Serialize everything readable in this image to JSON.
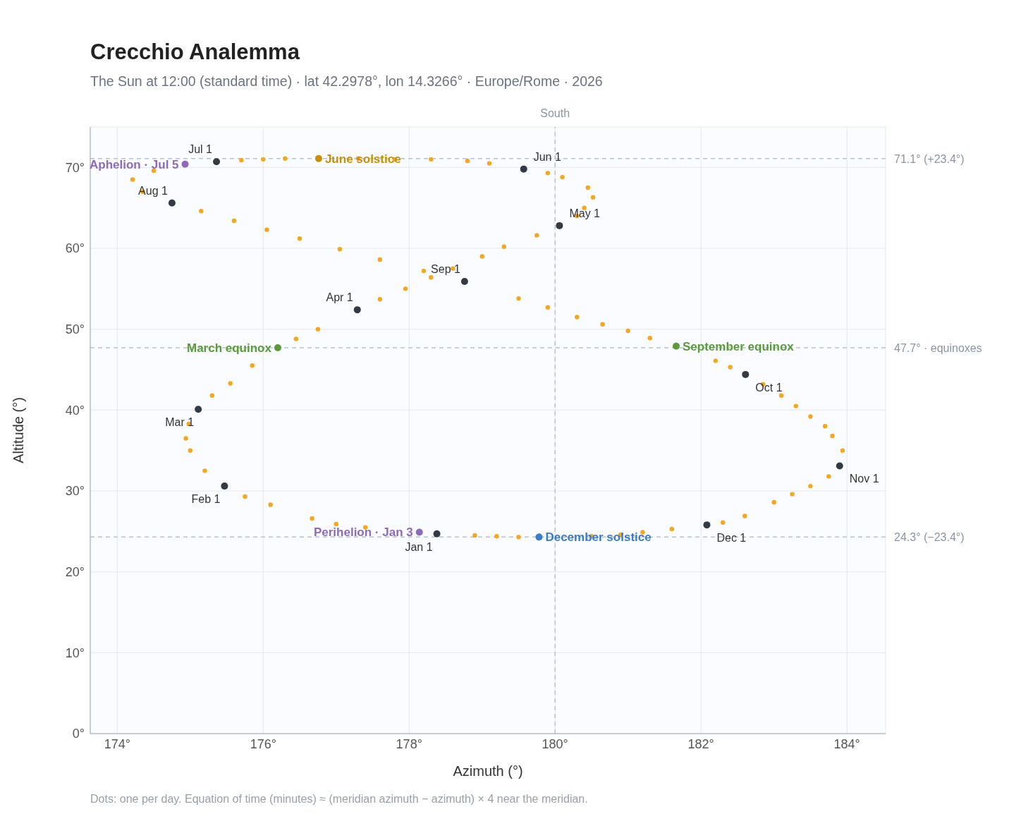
{
  "chart_data": {
    "type": "scatter",
    "title": "Crecchio Analemma",
    "subtitle": "The Sun at 12:00 (standard time) · lat 42.2978°, lon 14.3266° · Europe/Rome · 2026",
    "xlabel": "Azimuth (°)",
    "ylabel": "Altitude (°)",
    "marker": "circle",
    "grid": true,
    "xlim": [
      173.63,
      184.53
    ],
    "ylim": [
      0,
      75
    ],
    "xticks": [
      {
        "value": 174,
        "label": "174°"
      },
      {
        "value": 176,
        "label": "176°"
      },
      {
        "value": 178,
        "label": "178°"
      },
      {
        "value": 180,
        "label": "180°"
      },
      {
        "value": 182,
        "label": "182°"
      },
      {
        "value": 184,
        "label": "184°"
      }
    ],
    "yticks": [
      {
        "value": 0,
        "label": "0°"
      },
      {
        "value": 10,
        "label": "10°"
      },
      {
        "value": 20,
        "label": "20°"
      },
      {
        "value": 30,
        "label": "30°"
      },
      {
        "value": 40,
        "label": "40°"
      },
      {
        "value": 50,
        "label": "50°"
      },
      {
        "value": 60,
        "label": "60°"
      },
      {
        "value": 70,
        "label": "70°"
      }
    ],
    "ref_lines": [
      {
        "axis": "x",
        "value": 180,
        "label": "South",
        "color": "#b8c2cc",
        "line_style": "dashed"
      },
      {
        "axis": "y",
        "value": 71.1,
        "label": "71.1° (+23.4°)",
        "color": "#b8c2cc",
        "line_style": "dashed"
      },
      {
        "axis": "y",
        "value": 47.7,
        "label": "47.7° · equinoxes",
        "color": "#b8c2cc",
        "line_style": "dashed"
      },
      {
        "axis": "y",
        "value": 24.3,
        "label": "24.3° (−23.4°)",
        "color": "#b8c2cc",
        "line_style": "dashed"
      }
    ],
    "series": [
      {
        "color": "#f5a623",
        "x": [
          177.4,
          177.0,
          176.67,
          176.1,
          175.75,
          175.2,
          175.0,
          174.94,
          174.98,
          175.3,
          175.55,
          175.85,
          176.45,
          176.75,
          177.6,
          177.95,
          178.3,
          178.6,
          179.0,
          179.3,
          179.75,
          180.3,
          180.4,
          180.52,
          180.45,
          180.1,
          179.9,
          179.1,
          178.8,
          178.3,
          177.8,
          177.3,
          176.3,
          176.0,
          175.7,
          174.5,
          174.21,
          174.35,
          175.15,
          175.6,
          176.05,
          176.5,
          177.05,
          177.6,
          178.2,
          179.5,
          179.9,
          180.3,
          180.65,
          181.0,
          181.3,
          182.2,
          182.4,
          182.85,
          183.1,
          183.3,
          183.5,
          183.7,
          183.8,
          183.94,
          183.75,
          183.5,
          183.25,
          183.0,
          182.6,
          182.3,
          181.6,
          181.2,
          180.9,
          180.5,
          179.5,
          179.2,
          178.9
        ],
        "values": [
          25.5,
          25.9,
          26.6,
          28.3,
          29.3,
          32.5,
          35.0,
          36.5,
          38.3,
          41.8,
          43.3,
          45.5,
          48.8,
          50.0,
          53.7,
          55.0,
          56.4,
          57.5,
          59.0,
          60.2,
          61.6,
          64.0,
          65.0,
          66.3,
          67.5,
          68.8,
          69.3,
          70.5,
          70.8,
          71.0,
          71.0,
          71.1,
          71.1,
          71.0,
          70.9,
          69.6,
          68.5,
          67.0,
          64.6,
          63.4,
          62.3,
          61.2,
          59.9,
          58.6,
          57.2,
          53.8,
          52.7,
          51.5,
          50.6,
          49.8,
          48.9,
          46.1,
          45.3,
          43.2,
          41.8,
          40.5,
          39.2,
          38.0,
          36.8,
          35.0,
          31.8,
          30.6,
          29.6,
          28.6,
          26.9,
          26.1,
          25.3,
          24.9,
          24.6,
          24.4,
          24.3,
          24.4,
          24.5
        ]
      },
      {
        "color": "#343a44",
        "x": [
          178.38,
          175.47,
          175.11,
          177.29,
          180.06,
          179.57,
          175.36,
          174.75,
          178.76,
          182.61,
          183.9,
          182.08
        ],
        "values": [
          24.7,
          30.6,
          40.1,
          52.4,
          62.8,
          69.8,
          70.7,
          65.6,
          55.9,
          44.4,
          33.1,
          25.8
        ],
        "value_labels": [
          "Jan 1",
          "Feb 1",
          "Mar 1",
          "Apr 1",
          "May 1",
          "Jun 1",
          "Jul 1",
          "Aug 1",
          "Sep 1",
          "Oct 1",
          "Nov 1",
          "Dec 1"
        ]
      },
      {
        "name": "Perihelion · Jan 3",
        "color": "#8e6bb8",
        "x": [
          178.14
        ],
        "values": [
          24.9
        ]
      },
      {
        "name": "Aphelion · Jul 5",
        "color": "#8e6bb8",
        "x": [
          174.93
        ],
        "values": [
          70.4
        ]
      },
      {
        "name": "March equinox",
        "color": "#5a9a3a",
        "x": [
          176.2
        ],
        "values": [
          47.7
        ]
      },
      {
        "name": "June solstice",
        "color": "#c8900a",
        "x": [
          176.76
        ],
        "values": [
          71.1
        ]
      },
      {
        "name": "September equinox",
        "color": "#5a9a3a",
        "x": [
          181.66
        ],
        "values": [
          47.9
        ]
      },
      {
        "name": "December solstice",
        "color": "#3a7cc8",
        "x": [
          179.78
        ],
        "values": [
          24.3
        ]
      }
    ],
    "annotations": [
      "Dots: one per day. Equation of time (minutes) ≈ (meridian azimuth − azimuth) × 4 near the meridian."
    ]
  }
}
